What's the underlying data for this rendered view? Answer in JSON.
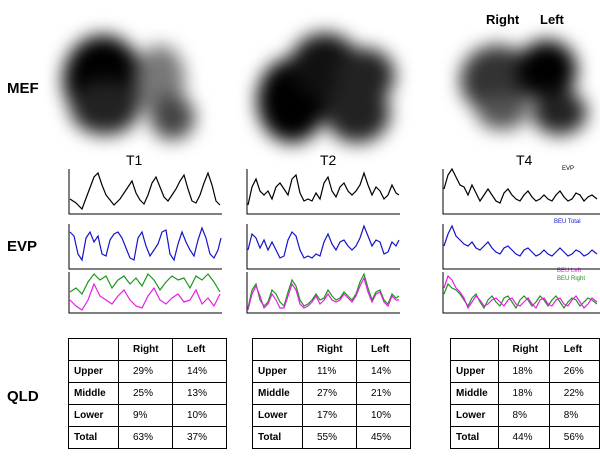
{
  "row_labels": {
    "mef": "MEF",
    "evp": "EVP",
    "qld": "QLD"
  },
  "time_labels": [
    "T1",
    "T2",
    "T4"
  ],
  "orientation": {
    "right": "Right",
    "left": "Left"
  },
  "legends": {
    "evp": "EVP",
    "beu_total": "BEU Total",
    "beu_left": "BEU Left",
    "beu_right": "BEU Right"
  },
  "colors": {
    "evp": "#000000",
    "beu_total": "#1414c8",
    "beu_left": "#e61ee6",
    "beu_right": "#1e961e"
  },
  "tables": [
    {
      "header": [
        "",
        "Right",
        "Left"
      ],
      "rows": [
        [
          "Upper",
          "29%",
          "14%"
        ],
        [
          "Middle",
          "25%",
          "13%"
        ],
        [
          "Lower",
          "9%",
          "10%"
        ],
        [
          "Total",
          "63%",
          "37%"
        ]
      ]
    },
    {
      "header": [
        "",
        "Right",
        "Left"
      ],
      "rows": [
        [
          "Upper",
          "11%",
          "14%"
        ],
        [
          "Middle",
          "27%",
          "21%"
        ],
        [
          "Lower",
          "17%",
          "10%"
        ],
        [
          "Total",
          "55%",
          "45%"
        ]
      ]
    },
    {
      "header": [
        "",
        "Right",
        "Left"
      ],
      "rows": [
        [
          "Upper",
          "18%",
          "26%"
        ],
        [
          "Middle",
          "18%",
          "22%"
        ],
        [
          "Lower",
          "8%",
          "8%"
        ],
        [
          "Total",
          "44%",
          "56%"
        ]
      ]
    }
  ]
}
